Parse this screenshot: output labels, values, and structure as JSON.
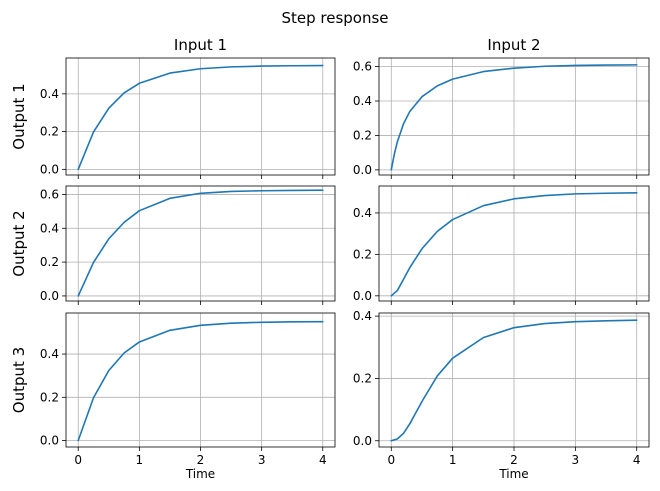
{
  "title": "Step response",
  "colors": {
    "line": "#1f77b4",
    "grid": "#b0b0b0"
  },
  "chart_data": {
    "type": "line",
    "title": "Step response",
    "grid": true,
    "legend": "none",
    "layout": "3x2 subplot grid, shared x axis per column",
    "column_titles": [
      "Input 1",
      "Input 2"
    ],
    "row_labels": [
      "Output 1",
      "Output 2",
      "Output 3"
    ],
    "xlabel": "Time",
    "xlim": [
      -0.2,
      4.2
    ],
    "xticks": [
      0,
      1,
      2,
      3,
      4
    ],
    "xtick_labels": [
      "0",
      "1",
      "2",
      "3",
      "4"
    ],
    "panels": [
      {
        "row": 0,
        "col": 0,
        "input": "Input 1",
        "output": "Output 1",
        "ylim": [
          -0.03,
          0.59
        ],
        "yticks": [
          0,
          0.2,
          0.4
        ],
        "ytick_labels": [
          "0.0",
          "0.2",
          "0.4"
        ],
        "series": [
          {
            "x": [
              0,
              0.25,
              0.5,
              0.75,
              1,
              1.5,
              2,
              2.5,
              3,
              3.5,
              4
            ],
            "y": [
              0,
              0.198,
              0.324,
              0.405,
              0.456,
              0.51,
              0.533,
              0.543,
              0.547,
              0.549,
              0.55
            ]
          }
        ]
      },
      {
        "row": 0,
        "col": 1,
        "input": "Input 2",
        "output": "Output 1",
        "ylim": [
          -0.03,
          0.65
        ],
        "yticks": [
          0,
          0.2,
          0.4,
          0.6
        ],
        "ytick_labels": [
          "0.0",
          "0.2",
          "0.4",
          "0.6"
        ],
        "series": [
          {
            "x": [
              0,
              0.05,
              0.1,
              0.2,
              0.3,
              0.5,
              0.75,
              1,
              1.5,
              2,
              2.5,
              3,
              3.5,
              4
            ],
            "y": [
              0,
              0.092,
              0.164,
              0.268,
              0.338,
              0.425,
              0.488,
              0.527,
              0.571,
              0.591,
              0.602,
              0.607,
              0.609,
              0.61
            ]
          }
        ]
      },
      {
        "row": 1,
        "col": 0,
        "input": "Input 1",
        "output": "Output 2",
        "ylim": [
          -0.03,
          0.65
        ],
        "yticks": [
          0,
          0.2,
          0.4,
          0.6
        ],
        "ytick_labels": [
          "0.0",
          "0.2",
          "0.4",
          "0.6"
        ],
        "series": [
          {
            "x": [
              0,
              0.25,
              0.5,
              0.75,
              1,
              1.5,
              2,
              2.5,
              3,
              3.5,
              4
            ],
            "y": [
              0,
              0.198,
              0.338,
              0.435,
              0.504,
              0.577,
              0.607,
              0.618,
              0.622,
              0.624,
              0.625
            ]
          }
        ]
      },
      {
        "row": 1,
        "col": 1,
        "input": "Input 2",
        "output": "Output 2",
        "ylim": [
          -0.025,
          0.53
        ],
        "yticks": [
          0,
          0.2,
          0.4
        ],
        "ytick_labels": [
          "0.0",
          "0.2",
          "0.4"
        ],
        "series": [
          {
            "x": [
              0,
              0.1,
              0.2,
              0.3,
              0.5,
              0.75,
              1,
              1.5,
              2,
              2.5,
              3,
              3.5,
              4
            ],
            "y": [
              0,
              0.026,
              0.08,
              0.135,
              0.227,
              0.311,
              0.368,
              0.435,
              0.468,
              0.484,
              0.492,
              0.495,
              0.497
            ]
          }
        ]
      },
      {
        "row": 2,
        "col": 0,
        "input": "Input 1",
        "output": "Output 3",
        "ylim": [
          -0.03,
          0.59
        ],
        "yticks": [
          0,
          0.2,
          0.4
        ],
        "ytick_labels": [
          "0.0",
          "0.2",
          "0.4"
        ],
        "series": [
          {
            "x": [
              0,
              0.25,
              0.5,
              0.75,
              1,
              1.5,
              2,
              2.5,
              3,
              3.5,
              4
            ],
            "y": [
              0,
              0.198,
              0.324,
              0.405,
              0.456,
              0.51,
              0.533,
              0.543,
              0.547,
              0.549,
              0.55
            ]
          }
        ]
      },
      {
        "row": 2,
        "col": 1,
        "input": "Input 2",
        "output": "Output 3",
        "ylim": [
          -0.02,
          0.41
        ],
        "yticks": [
          0,
          0.2,
          0.4
        ],
        "ytick_labels": [
          "0.0",
          "0.2",
          "0.4"
        ],
        "series": [
          {
            "x": [
              0,
              0.1,
              0.2,
              0.3,
              0.4,
              0.5,
              0.75,
              1,
              1.5,
              2,
              2.5,
              3,
              3.5,
              4
            ],
            "y": [
              0,
              0.006,
              0.024,
              0.054,
              0.09,
              0.126,
              0.208,
              0.265,
              0.331,
              0.363,
              0.376,
              0.382,
              0.385,
              0.387
            ]
          }
        ]
      }
    ]
  }
}
